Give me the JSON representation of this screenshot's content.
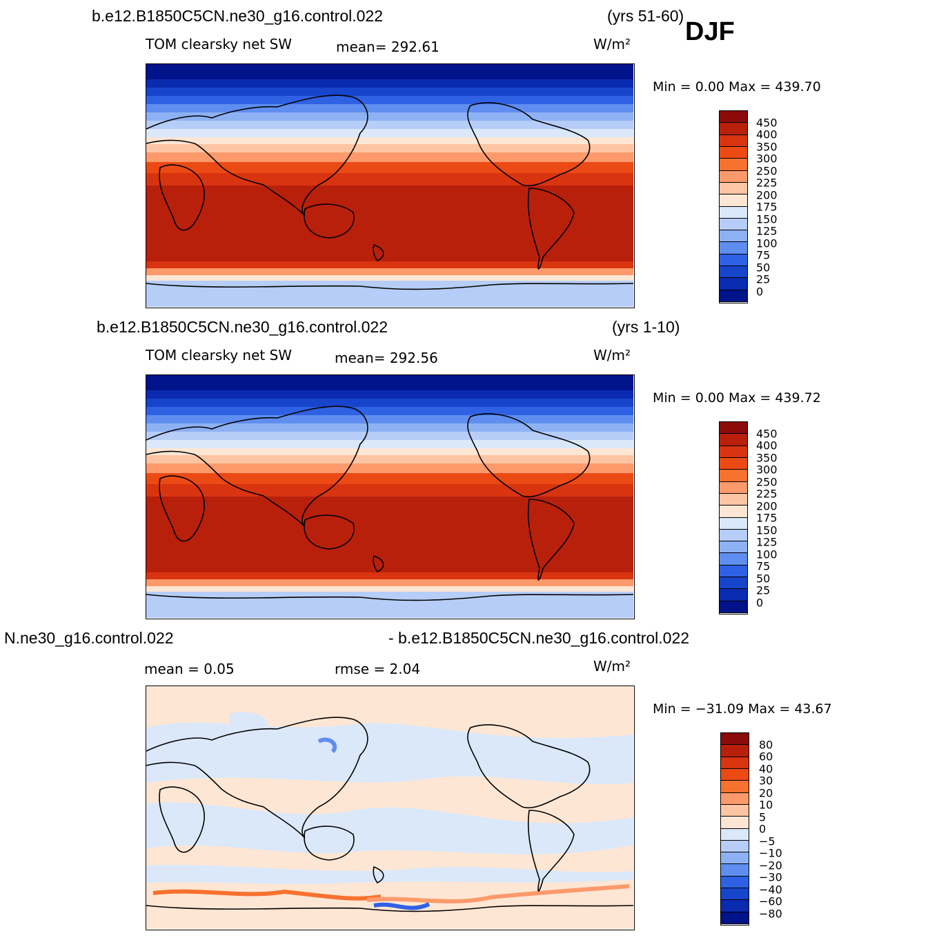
{
  "djf_label": "DJF",
  "panels": [
    {
      "case_left": "b.e12.B1850C5CN.ne30_g16.control.022",
      "case_right": "(yrs 51-60)",
      "variable": "TOM clearsky net SW",
      "stat1": "mean=  292.61",
      "stat2": "",
      "units": "W/m²",
      "minmax": "Min =     0.00 Max =  439.70",
      "scale": "abs",
      "colorbar_labels": [
        "450",
        "400",
        "350",
        "300",
        "250",
        "225",
        "200",
        "175",
        "150",
        "125",
        "100",
        "75",
        "50",
        "25",
        "0"
      ]
    },
    {
      "case_left": "b.e12.B1850C5CN.ne30_g16.control.022",
      "case_right": "(yrs 1-10)",
      "variable": "TOM clearsky net SW",
      "stat1": "mean=  292.56",
      "stat2": "",
      "units": "W/m²",
      "minmax": "Min =     0.00 Max =  439.72",
      "scale": "abs",
      "colorbar_labels": [
        "450",
        "400",
        "350",
        "300",
        "250",
        "225",
        "200",
        "175",
        "150",
        "125",
        "100",
        "75",
        "50",
        "25",
        "0"
      ]
    },
    {
      "case_left": "N.ne30_g16.control.022",
      "case_right": "- b.e12.B1850C5CN.ne30_g16.control.022",
      "variable": "",
      "stat1": "mean =    0.05",
      "stat2": "rmse =    2.04",
      "units": "W/m²",
      "minmax": "Min = −31.09 Max =   43.67",
      "scale": "diff",
      "colorbar_labels": [
        "80",
        "60",
        "40",
        "30",
        "20",
        "10",
        "5",
        "0",
        "−5",
        "−10",
        "−20",
        "−30",
        "−40",
        "−60",
        "−80"
      ]
    }
  ],
  "colors": {
    "abs_scale": [
      "#8b0a0a",
      "#b8200b",
      "#d83410",
      "#eb4a14",
      "#f7712f",
      "#fc9a6c",
      "#fdc5a3",
      "#fde6d4",
      "#dbe8fa",
      "#b6cdf7",
      "#8eb1f4",
      "#5f8ef0",
      "#2f61e4",
      "#1644cb",
      "#0a2ab0",
      "#01138a"
    ],
    "diff_scale": [
      "#8b0a0a",
      "#b8200b",
      "#d83410",
      "#eb4a14",
      "#f7712f",
      "#fc9a6c",
      "#fdc5a3",
      "#fde6d4",
      "#dbe8fa",
      "#b6cdf7",
      "#8eb1f4",
      "#5f8ef0",
      "#2f61e4",
      "#1644cb",
      "#0a2ab0",
      "#01138a"
    ]
  }
}
